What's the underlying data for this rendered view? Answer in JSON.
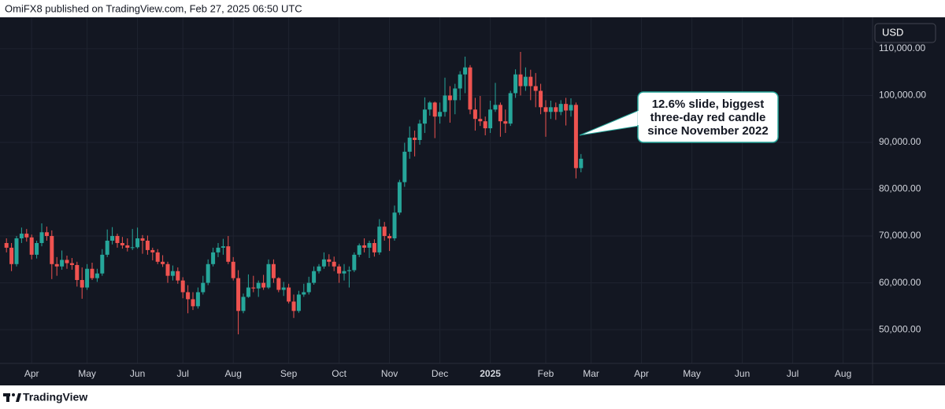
{
  "chart_data": {
    "type": "candlestick",
    "title": "OmiFX8 published on TradingView.com, Feb 27, 2025 06:50 UTC",
    "currency": "USD",
    "source": "TradingView",
    "annotation": "12.6% slide, biggest three-day red candle since November 2022",
    "up_color": "#26a69a",
    "down_color": "#ef5350",
    "grid": true,
    "ylim": [
      42800,
      116700
    ],
    "yticks": [
      {
        "value": 50000,
        "label": "50,000.00"
      },
      {
        "value": 60000,
        "label": "60,000.00"
      },
      {
        "value": 70000,
        "label": "70,000.00"
      },
      {
        "value": 80000,
        "label": "80,000.00"
      },
      {
        "value": 90000,
        "label": "90,000.00"
      },
      {
        "value": 100000,
        "label": "100,000.00"
      },
      {
        "value": 110000,
        "label": "110,000.00"
      }
    ],
    "categories": [
      null,
      null,
      null,
      null,
      null,
      "Apr",
      null,
      null,
      null,
      null,
      null,
      null,
      null,
      null,
      null,
      null,
      "May",
      null,
      null,
      null,
      null,
      null,
      null,
      null,
      null,
      null,
      "Jun",
      null,
      null,
      null,
      null,
      null,
      null,
      null,
      null,
      "Jul",
      null,
      null,
      null,
      null,
      null,
      null,
      null,
      null,
      null,
      "Aug",
      null,
      null,
      null,
      null,
      null,
      null,
      null,
      null,
      null,
      null,
      "Sep",
      null,
      null,
      null,
      null,
      null,
      null,
      null,
      null,
      null,
      "Oct",
      null,
      null,
      null,
      null,
      null,
      null,
      null,
      null,
      null,
      "Nov",
      null,
      null,
      null,
      null,
      null,
      null,
      null,
      null,
      null,
      "Dec",
      null,
      null,
      null,
      null,
      null,
      null,
      null,
      null,
      null,
      "2025",
      null,
      null,
      null,
      null,
      null,
      null,
      null,
      null,
      null,
      null,
      "Feb",
      null,
      null,
      null,
      null,
      null,
      null,
      null,
      null,
      "Mar",
      null,
      null,
      null,
      null,
      null,
      null,
      null,
      null,
      null,
      "Apr",
      null,
      null,
      null,
      null,
      null,
      null,
      null,
      null,
      null,
      "May",
      null,
      null,
      null,
      null,
      null,
      null,
      null,
      null,
      null,
      "Jun",
      null,
      null,
      null,
      null,
      null,
      null,
      null,
      null,
      null,
      "Jul",
      null,
      null,
      null,
      null,
      null,
      null,
      null,
      null,
      null,
      "Aug",
      null,
      null,
      null,
      null,
      null
    ],
    "ohlc": [
      [
        68500,
        69500,
        66500,
        67500
      ],
      [
        67500,
        68500,
        62500,
        64000
      ],
      [
        64000,
        70000,
        63500,
        69500
      ],
      [
        69500,
        71800,
        68500,
        70500
      ],
      [
        70500,
        71500,
        68800,
        69700
      ],
      [
        69700,
        70300,
        65000,
        66000
      ],
      [
        66000,
        69000,
        65200,
        68500
      ],
      [
        68500,
        72700,
        67800,
        70800
      ],
      [
        70800,
        72000,
        69000,
        70000
      ],
      [
        70000,
        71200,
        60800,
        64000
      ],
      [
        64000,
        65500,
        61500,
        63500
      ],
      [
        63500,
        66900,
        62800,
        64900
      ],
      [
        64900,
        65800,
        63000,
        64200
      ],
      [
        64200,
        65300,
        62800,
        63800
      ],
      [
        63800,
        64500,
        59200,
        60600
      ],
      [
        60600,
        63300,
        56600,
        59000
      ],
      [
        59000,
        64000,
        58500,
        63000
      ],
      [
        63000,
        64300,
        60600,
        61000
      ],
      [
        61000,
        63000,
        60200,
        62000
      ],
      [
        62000,
        67200,
        61500,
        66000
      ],
      [
        66000,
        71400,
        65500,
        69000
      ],
      [
        69000,
        71900,
        68200,
        70000
      ],
      [
        70000,
        70500,
        67500,
        68500
      ],
      [
        68500,
        69800,
        67300,
        68000
      ],
      [
        68000,
        69500,
        66700,
        67500
      ],
      [
        67500,
        71500,
        67000,
        67600
      ],
      [
        67600,
        71800,
        67300,
        69500
      ],
      [
        69500,
        70200,
        66200,
        69000
      ],
      [
        69000,
        70100,
        66000,
        67000
      ],
      [
        67000,
        67500,
        64800,
        66500
      ],
      [
        66500,
        67200,
        64000,
        64500
      ],
      [
        64500,
        65900,
        63400,
        64000
      ],
      [
        64000,
        64500,
        60000,
        61500
      ],
      [
        61500,
        63700,
        60500,
        62500
      ],
      [
        62500,
        63300,
        59800,
        60500
      ],
      [
        60500,
        61200,
        56700,
        58000
      ],
      [
        58000,
        59500,
        53500,
        56500
      ],
      [
        56500,
        58000,
        54200,
        55000
      ],
      [
        55000,
        59000,
        54500,
        58000
      ],
      [
        58000,
        61500,
        57500,
        60000
      ],
      [
        60000,
        65000,
        59500,
        64000
      ],
      [
        64000,
        67500,
        63500,
        66500
      ],
      [
        66500,
        68500,
        65500,
        67500
      ],
      [
        67500,
        69400,
        66000,
        67800
      ],
      [
        67800,
        70000,
        64000,
        64500
      ],
      [
        64500,
        65500,
        60500,
        61000
      ],
      [
        61000,
        62700,
        49000,
        54000
      ],
      [
        54000,
        57700,
        53500,
        57000
      ],
      [
        57000,
        61800,
        56800,
        59000
      ],
      [
        59000,
        61500,
        58000,
        58800
      ],
      [
        58800,
        60500,
        57000,
        60000
      ],
      [
        60000,
        61700,
        58500,
        59000
      ],
      [
        59000,
        65000,
        58700,
        64000
      ],
      [
        64000,
        65000,
        60000,
        61000
      ],
      [
        61000,
        61200,
        58000,
        58500
      ],
      [
        58500,
        60200,
        57200,
        59000
      ],
      [
        59000,
        59800,
        55600,
        56000
      ],
      [
        56000,
        57500,
        52500,
        54000
      ],
      [
        54000,
        58300,
        53600,
        57500
      ],
      [
        57500,
        59800,
        57000,
        58000
      ],
      [
        58000,
        61300,
        57500,
        60000
      ],
      [
        60000,
        63500,
        59600,
        62500
      ],
      [
        62500,
        64000,
        62000,
        63500
      ],
      [
        63500,
        66500,
        63000,
        65000
      ],
      [
        65000,
        66100,
        63500,
        64500
      ],
      [
        64500,
        65600,
        62500,
        63500
      ],
      [
        63500,
        64000,
        60000,
        62000
      ],
      [
        62000,
        64000,
        60500,
        62500
      ],
      [
        62500,
        63500,
        59000,
        62700
      ],
      [
        62700,
        66500,
        62300,
        66000
      ],
      [
        66000,
        68400,
        65500,
        68000
      ],
      [
        68000,
        69500,
        66500,
        67500
      ],
      [
        67500,
        69000,
        65300,
        68500
      ],
      [
        68500,
        69300,
        65600,
        66500
      ],
      [
        66500,
        73600,
        66000,
        72000
      ],
      [
        72000,
        73000,
        69000,
        70000
      ],
      [
        70000,
        70500,
        66800,
        69500
      ],
      [
        69500,
        76500,
        69000,
        75000
      ],
      [
        75000,
        82000,
        74500,
        81500
      ],
      [
        81500,
        89900,
        80500,
        88000
      ],
      [
        88000,
        93400,
        86500,
        91000
      ],
      [
        91000,
        92500,
        87000,
        90500
      ],
      [
        90500,
        94800,
        89500,
        94000
      ],
      [
        94000,
        99600,
        92000,
        97000
      ],
      [
        97000,
        98800,
        95700,
        98500
      ],
      [
        98500,
        98700,
        90900,
        95500
      ],
      [
        95500,
        98500,
        94000,
        96500
      ],
      [
        96500,
        103800,
        95500,
        100000
      ],
      [
        100000,
        102000,
        94200,
        99000
      ],
      [
        99000,
        102500,
        96000,
        101500
      ],
      [
        101500,
        105200,
        99000,
        104500
      ],
      [
        104500,
        108300,
        100500,
        106000
      ],
      [
        106000,
        106500,
        96000,
        97000
      ],
      [
        97000,
        99500,
        92500,
        95000
      ],
      [
        95000,
        99900,
        93500,
        94500
      ],
      [
        94500,
        95500,
        91500,
        93000
      ],
      [
        93000,
        98900,
        92000,
        97000
      ],
      [
        97000,
        102700,
        96500,
        98000
      ],
      [
        98000,
        98500,
        91200,
        94500
      ],
      [
        94500,
        97000,
        92000,
        94000
      ],
      [
        94000,
        101000,
        93500,
        100500
      ],
      [
        100500,
        105600,
        99500,
        104500
      ],
      [
        104500,
        109300,
        100000,
        102000
      ],
      [
        102000,
        106000,
        101000,
        104000
      ],
      [
        104000,
        105500,
        99000,
        102000
      ],
      [
        102000,
        104800,
        97500,
        101000
      ],
      [
        101000,
        102500,
        96000,
        97500
      ],
      [
        97500,
        99000,
        91200,
        96500
      ],
      [
        96500,
        98900,
        95000,
        97500
      ],
      [
        97500,
        98500,
        94800,
        96500
      ],
      [
        96500,
        99000,
        95800,
        98200
      ],
      [
        98200,
        99500,
        93600,
        96800
      ],
      [
        96800,
        99400,
        95500,
        98000
      ],
      [
        98000,
        98500,
        82300,
        84500
      ],
      [
        84500,
        87500,
        83600,
        86500
      ],
      null,
      null,
      null,
      null,
      null,
      null,
      null,
      null,
      null,
      null,
      null,
      null,
      null,
      null,
      null,
      null,
      null,
      null,
      null,
      null,
      null,
      null,
      null,
      null,
      null,
      null,
      null,
      null,
      null,
      null,
      null,
      null,
      null,
      null,
      null,
      null,
      null,
      null,
      null,
      null,
      null,
      null,
      null,
      null,
      null,
      null,
      null,
      null,
      null,
      null,
      null,
      null,
      null,
      null,
      null,
      null,
      null
    ]
  }
}
